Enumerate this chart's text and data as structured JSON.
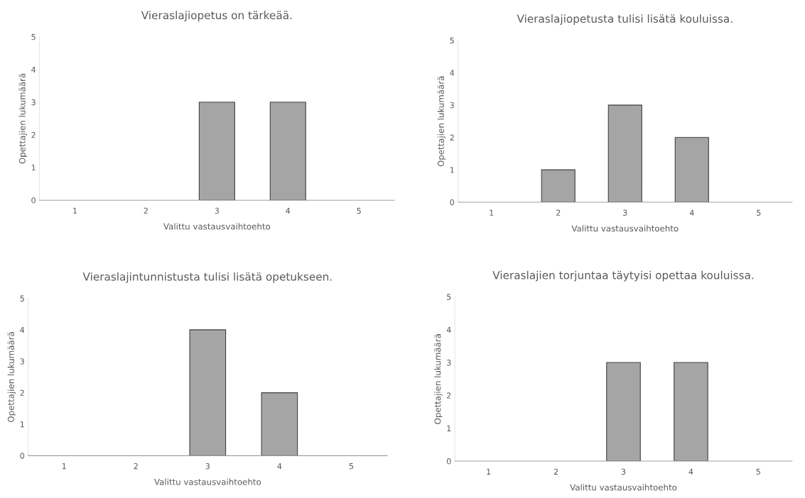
{
  "chart_data": [
    {
      "type": "bar",
      "title": "Vieraslajiopetus on tärkeää.",
      "xlabel": "Valittu vastausvaihtoehto",
      "ylabel": "Opettajien lukumäärä",
      "categories": [
        "1",
        "2",
        "3",
        "4",
        "5"
      ],
      "values": [
        0,
        0,
        3,
        3,
        0
      ],
      "color": "#a5a5a5",
      "ylim": [
        0,
        5
      ],
      "yticks": [
        0,
        1,
        2,
        3,
        4,
        5
      ],
      "grid": false,
      "legend": false
    },
    {
      "type": "bar",
      "title": "Vieraslajiopetusta tulisi lisätä kouluissa.",
      "xlabel": "Valittu vastausvaihtoehto",
      "ylabel": "Opettajien lukumäärä",
      "categories": [
        "1",
        "2",
        "3",
        "4",
        "5"
      ],
      "values": [
        0,
        1,
        3,
        2,
        0
      ],
      "color": "#a5a5a5",
      "ylim": [
        0,
        5
      ],
      "yticks": [
        0,
        1,
        2,
        3,
        4,
        5
      ],
      "grid": false,
      "legend": false
    },
    {
      "type": "bar",
      "title": "Vieraslajintunnistusta tulisi lisätä opetukseen.",
      "xlabel": "Valittu vastausvaihtoehto",
      "ylabel": "Opettajien lukumäärä",
      "categories": [
        "1",
        "2",
        "3",
        "4",
        "5"
      ],
      "values": [
        0,
        0,
        4,
        2,
        0
      ],
      "color": "#a5a5a5",
      "ylim": [
        0,
        5
      ],
      "yticks": [
        0,
        1,
        2,
        3,
        4,
        5
      ],
      "grid": false,
      "legend": false
    },
    {
      "type": "bar",
      "title": "Vieraslajien torjuntaa täytyisi opettaa kouluissa.",
      "xlabel": "Valittu vastausvaihtoehto",
      "ylabel": "Opettajien lukumäärä",
      "categories": [
        "1",
        "2",
        "3",
        "4",
        "5"
      ],
      "values": [
        0,
        0,
        3,
        3,
        0
      ],
      "color": "#a5a5a5",
      "ylim": [
        0,
        5
      ],
      "yticks": [
        0,
        1,
        2,
        3,
        4,
        5
      ],
      "grid": false,
      "legend": false
    }
  ]
}
